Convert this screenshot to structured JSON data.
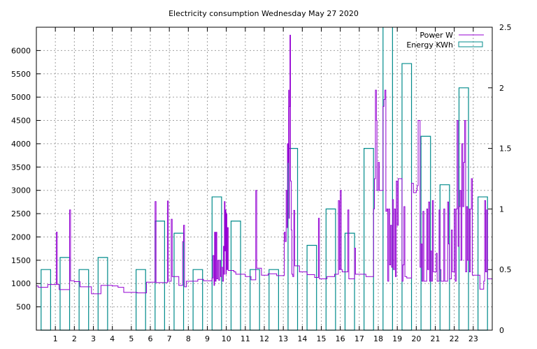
{
  "chart_data": {
    "type": "line",
    "title": "Electricity consumption Wednesday May 27 2020",
    "xlabel": "",
    "ylabel": "",
    "x_unit_note": "",
    "xlim": [
      0,
      24
    ],
    "x_ticks": [
      1,
      2,
      3,
      4,
      5,
      6,
      7,
      8,
      9,
      10,
      11,
      12,
      13,
      14,
      15,
      16,
      17,
      18,
      19,
      20,
      21,
      22,
      23
    ],
    "y_left": {
      "lim": [
        0,
        6500
      ],
      "ticks": [
        500,
        1000,
        1500,
        2000,
        2500,
        3000,
        3500,
        4000,
        4500,
        5000,
        5500,
        6000
      ]
    },
    "y_right": {
      "lim": [
        0,
        2.5
      ],
      "ticks": [
        0,
        0.5,
        1,
        1.5,
        2,
        2.5
      ],
      "tick_labels": [
        "0",
        "0.5",
        "1",
        "1.5",
        "2",
        "2.5"
      ]
    },
    "grid": true,
    "legend_position": "top-right",
    "series": [
      {
        "name": "Power W",
        "axis": "left",
        "style": "steps",
        "color": "#9400d3",
        "points": [
          [
            0.0,
            950
          ],
          [
            0.1,
            920
          ],
          [
            0.6,
            920
          ],
          [
            0.6,
            980
          ],
          [
            1.0,
            980
          ],
          [
            1.05,
            2100
          ],
          [
            1.1,
            980
          ],
          [
            1.2,
            870
          ],
          [
            1.7,
            870
          ],
          [
            1.75,
            2580
          ],
          [
            1.8,
            1060
          ],
          [
            2.0,
            1040
          ],
          [
            2.3,
            1040
          ],
          [
            2.3,
            930
          ],
          [
            2.9,
            930
          ],
          [
            2.9,
            780
          ],
          [
            3.35,
            780
          ],
          [
            3.4,
            960
          ],
          [
            4.0,
            950
          ],
          [
            4.3,
            950
          ],
          [
            4.3,
            920
          ],
          [
            4.6,
            920
          ],
          [
            4.6,
            810
          ],
          [
            5.3,
            810
          ],
          [
            5.3,
            800
          ],
          [
            5.7,
            800
          ],
          [
            5.8,
            1030
          ],
          [
            6.2,
            1030
          ],
          [
            6.25,
            2760
          ],
          [
            6.3,
            1020
          ],
          [
            6.8,
            1020
          ],
          [
            6.9,
            2770
          ],
          [
            6.95,
            1050
          ],
          [
            7.1,
            2380
          ],
          [
            7.15,
            1150
          ],
          [
            7.4,
            1150
          ],
          [
            7.5,
            960
          ],
          [
            7.7,
            1900
          ],
          [
            7.75,
            2250
          ],
          [
            7.8,
            930
          ],
          [
            7.9,
            1050
          ],
          [
            8.5,
            1060
          ],
          [
            8.5,
            1090
          ],
          [
            8.8,
            1090
          ],
          [
            8.8,
            1060
          ],
          [
            9.2,
            1060
          ],
          [
            9.25,
            1120
          ],
          [
            9.3,
            1600
          ],
          [
            9.35,
            960
          ],
          [
            9.38,
            2100
          ],
          [
            9.42,
            1050
          ],
          [
            9.46,
            2100
          ],
          [
            9.5,
            1100
          ],
          [
            9.55,
            1500
          ],
          [
            9.6,
            1070
          ],
          [
            9.65,
            1500
          ],
          [
            9.7,
            1150
          ],
          [
            9.75,
            1350
          ],
          [
            9.8,
            1050
          ],
          [
            9.85,
            1800
          ],
          [
            9.88,
            1200
          ],
          [
            9.9,
            2760
          ],
          [
            9.93,
            1700
          ],
          [
            9.95,
            2580
          ],
          [
            9.98,
            1200
          ],
          [
            10.0,
            2500
          ],
          [
            10.03,
            1300
          ],
          [
            10.06,
            2200
          ],
          [
            10.1,
            1280
          ],
          [
            10.4,
            1250
          ],
          [
            10.5,
            1250
          ],
          [
            10.5,
            1200
          ],
          [
            11.0,
            1200
          ],
          [
            11.0,
            1150
          ],
          [
            11.3,
            1150
          ],
          [
            11.3,
            1080
          ],
          [
            11.5,
            1080
          ],
          [
            11.55,
            3000
          ],
          [
            11.6,
            1330
          ],
          [
            11.8,
            1330
          ],
          [
            11.85,
            1180
          ],
          [
            12.2,
            1180
          ],
          [
            12.2,
            1210
          ],
          [
            12.6,
            1210
          ],
          [
            12.65,
            1170
          ],
          [
            13.0,
            1170
          ],
          [
            13.05,
            2100
          ],
          [
            13.1,
            1900
          ],
          [
            13.15,
            3000
          ],
          [
            13.2,
            2200
          ],
          [
            13.22,
            4000
          ],
          [
            13.25,
            3600
          ],
          [
            13.28,
            5150
          ],
          [
            13.3,
            2400
          ],
          [
            13.32,
            4800
          ],
          [
            13.35,
            6330
          ],
          [
            13.38,
            3200
          ],
          [
            13.42,
            2150
          ],
          [
            13.45,
            1200
          ],
          [
            13.5,
            1150
          ],
          [
            13.55,
            2570
          ],
          [
            13.6,
            1380
          ],
          [
            13.8,
            1380
          ],
          [
            13.85,
            1250
          ],
          [
            14.2,
            1250
          ],
          [
            14.25,
            1190
          ],
          [
            14.6,
            1190
          ],
          [
            14.65,
            1130
          ],
          [
            14.8,
            1130
          ],
          [
            14.85,
            2400
          ],
          [
            14.9,
            1100
          ],
          [
            15.2,
            1100
          ],
          [
            15.3,
            1150
          ],
          [
            15.6,
            1150
          ],
          [
            15.7,
            1200
          ],
          [
            15.9,
            2780
          ],
          [
            15.95,
            1300
          ],
          [
            16.0,
            3000
          ],
          [
            16.05,
            1300
          ],
          [
            16.1,
            1250
          ],
          [
            16.35,
            1250
          ],
          [
            16.4,
            2580
          ],
          [
            16.45,
            1100
          ],
          [
            16.7,
            1100
          ],
          [
            16.75,
            1760
          ],
          [
            16.8,
            1200
          ],
          [
            17.3,
            1200
          ],
          [
            17.35,
            1150
          ],
          [
            17.7,
            1150
          ],
          [
            17.75,
            2600
          ],
          [
            17.8,
            3250
          ],
          [
            17.85,
            5150
          ],
          [
            17.9,
            4500
          ],
          [
            17.93,
            3000
          ],
          [
            18.0,
            3600
          ],
          [
            18.05,
            3000
          ],
          [
            18.2,
            3000
          ],
          [
            18.25,
            4800
          ],
          [
            18.3,
            4950
          ],
          [
            18.35,
            5150
          ],
          [
            18.4,
            2550
          ],
          [
            18.45,
            2600
          ],
          [
            18.5,
            1050
          ],
          [
            18.55,
            2600
          ],
          [
            18.6,
            1400
          ],
          [
            18.65,
            2250
          ],
          [
            18.7,
            1350
          ],
          [
            18.75,
            2800
          ],
          [
            18.8,
            1300
          ],
          [
            18.85,
            2600
          ],
          [
            18.9,
            1150
          ],
          [
            18.95,
            3200
          ],
          [
            19.0,
            2250
          ],
          [
            19.05,
            3250
          ],
          [
            19.2,
            3250
          ],
          [
            19.25,
            1050
          ],
          [
            19.3,
            1400
          ],
          [
            19.35,
            2650
          ],
          [
            19.4,
            1150
          ],
          [
            19.5,
            1150
          ],
          [
            19.5,
            1120
          ],
          [
            19.7,
            1120
          ],
          [
            19.75,
            3150
          ],
          [
            19.8,
            3150
          ],
          [
            19.85,
            2950
          ],
          [
            20.0,
            3000
          ],
          [
            20.05,
            3100
          ],
          [
            20.1,
            4500
          ],
          [
            20.15,
            4500
          ],
          [
            20.2,
            1350
          ],
          [
            20.25,
            1850
          ],
          [
            20.3,
            1050
          ],
          [
            20.35,
            2550
          ],
          [
            20.4,
            1050
          ],
          [
            20.5,
            1050
          ],
          [
            20.55,
            2600
          ],
          [
            20.6,
            1300
          ],
          [
            20.65,
            2750
          ],
          [
            20.7,
            1050
          ],
          [
            20.75,
            1700
          ],
          [
            20.8,
            1050
          ],
          [
            20.85,
            2780
          ],
          [
            20.9,
            1250
          ],
          [
            21.0,
            1250
          ],
          [
            21.05,
            1650
          ],
          [
            21.1,
            1050
          ],
          [
            21.2,
            2580
          ],
          [
            21.25,
            1300
          ],
          [
            21.3,
            1050
          ],
          [
            21.4,
            1050
          ],
          [
            21.45,
            2600
          ],
          [
            21.5,
            1050
          ],
          [
            21.6,
            1050
          ],
          [
            21.65,
            2750
          ],
          [
            21.7,
            1850
          ],
          [
            21.75,
            1100
          ],
          [
            21.8,
            1100
          ],
          [
            21.85,
            2150
          ],
          [
            21.9,
            1250
          ],
          [
            22.0,
            2600
          ],
          [
            22.05,
            1050
          ],
          [
            22.1,
            2600
          ],
          [
            22.15,
            4500
          ],
          [
            22.2,
            1800
          ],
          [
            22.25,
            2650
          ],
          [
            22.3,
            3000
          ],
          [
            22.35,
            1500
          ],
          [
            22.4,
            4000
          ],
          [
            22.45,
            2650
          ],
          [
            22.5,
            3600
          ],
          [
            22.55,
            4500
          ],
          [
            22.6,
            1250
          ],
          [
            22.65,
            2650
          ],
          [
            22.7,
            1500
          ],
          [
            22.75,
            2600
          ],
          [
            22.8,
            1250
          ],
          [
            22.85,
            2600
          ],
          [
            22.9,
            3250
          ],
          [
            22.95,
            1180
          ],
          [
            23.3,
            1180
          ],
          [
            23.35,
            880
          ],
          [
            23.5,
            880
          ],
          [
            23.55,
            1050
          ],
          [
            23.6,
            2780
          ],
          [
            23.65,
            1250
          ],
          [
            23.7,
            2580
          ],
          [
            23.75,
            1100
          ],
          [
            24.0,
            1100
          ]
        ]
      },
      {
        "name": "Energy KWh",
        "axis": "right",
        "style": "boxes",
        "color": "#008b8b",
        "x": [
          0,
          1,
          2,
          3,
          4,
          5,
          6,
          7,
          8,
          9,
          10,
          11,
          12,
          13,
          14,
          15,
          16,
          17,
          18,
          19,
          20,
          21,
          22,
          23
        ],
        "values": [
          0.5,
          0.6,
          0.5,
          0.6,
          0.0,
          0.5,
          0.9,
          0.8,
          0.5,
          1.1,
          0.9,
          0.5,
          0.5,
          1.5,
          0.7,
          1.0,
          0.8,
          1.5,
          2.55,
          2.2,
          1.6,
          1.2,
          2.0,
          1.1
        ]
      }
    ]
  }
}
